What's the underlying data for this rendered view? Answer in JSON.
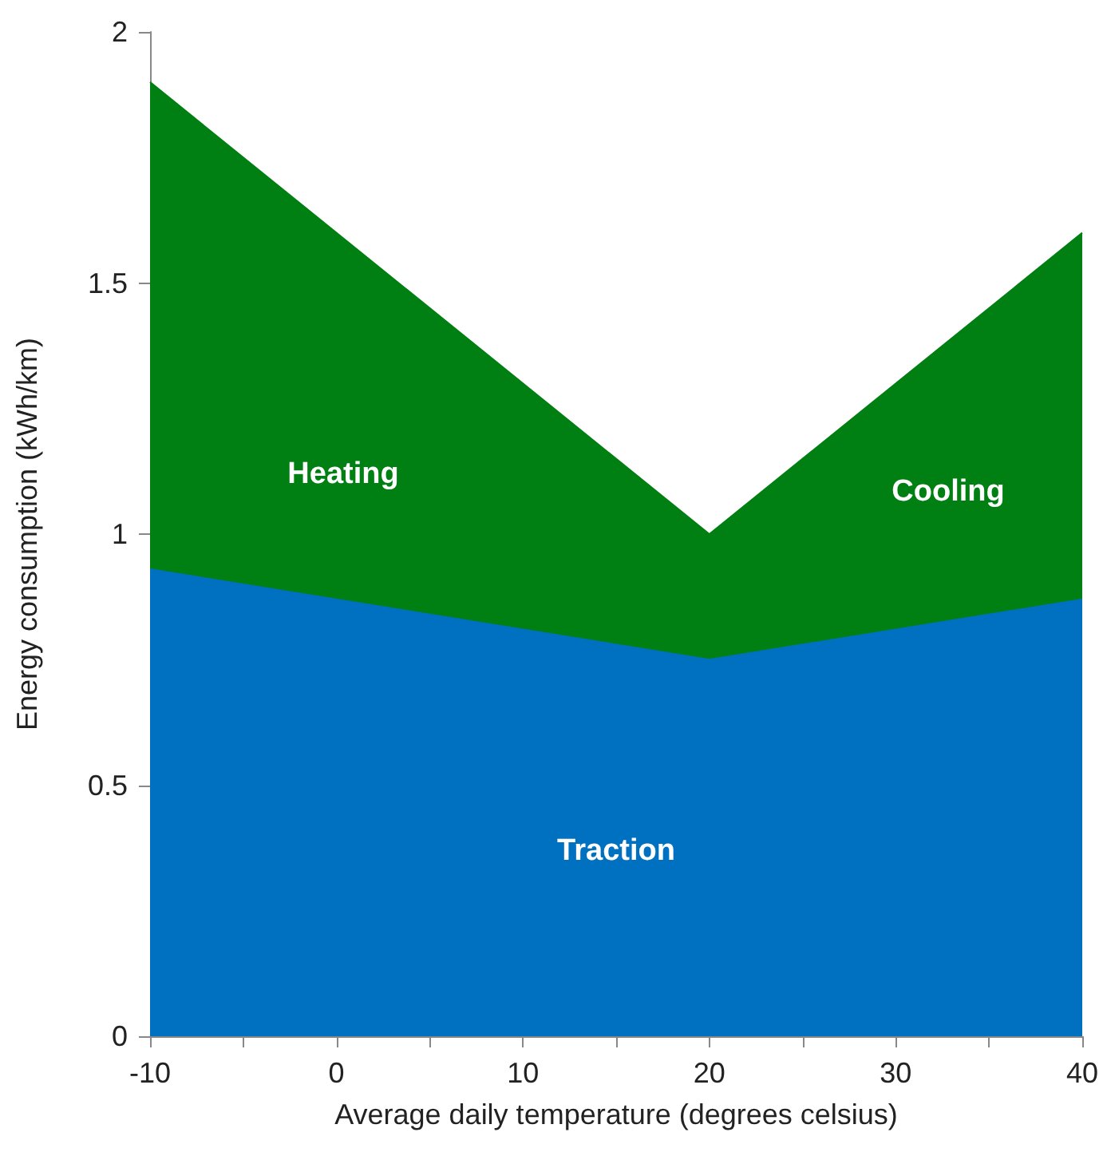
{
  "chart_data": {
    "type": "area",
    "stacked": true,
    "xlabel": "Average daily temperature (degrees celsius)",
    "ylabel": "Energy consumption (kWh/km)",
    "x": [
      -10,
      20,
      40
    ],
    "series": [
      {
        "color": "#0070c0",
        "values": [
          0.93,
          0.75,
          0.87
        ]
      },
      {
        "color": "#007f12",
        "values": [
          0.97,
          0.25,
          0.73
        ]
      }
    ],
    "xlim": [
      -10,
      40
    ],
    "xticks": [
      -10,
      {
        "value": -5,
        "label": null
      },
      0,
      {
        "value": 5,
        "label": null
      },
      10,
      {
        "value": 15,
        "label": null
      },
      20,
      {
        "value": 25,
        "label": null
      },
      30,
      {
        "value": 35,
        "label": null
      },
      40
    ],
    "ylim": [
      0,
      2
    ],
    "yticks": [
      0,
      0.5,
      1,
      1.5,
      2
    ],
    "grid": false,
    "annotations": [
      "Heating",
      "Cooling",
      "Traction"
    ]
  }
}
